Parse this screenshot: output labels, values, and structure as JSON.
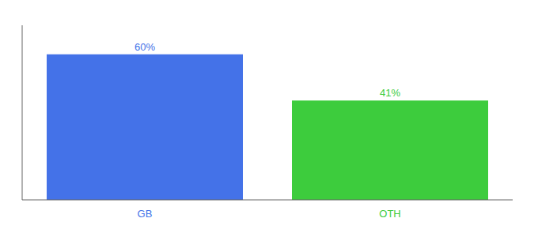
{
  "chart_data": {
    "type": "bar",
    "categories": [
      "GB",
      "OTH"
    ],
    "values": [
      60,
      41
    ],
    "value_labels": [
      "60%",
      "41%"
    ],
    "colors": [
      "#4472e8",
      "#3dcc3d"
    ],
    "ylim": [
      0,
      72
    ],
    "data_labels": true,
    "tick_labels": "x",
    "grid": false
  }
}
